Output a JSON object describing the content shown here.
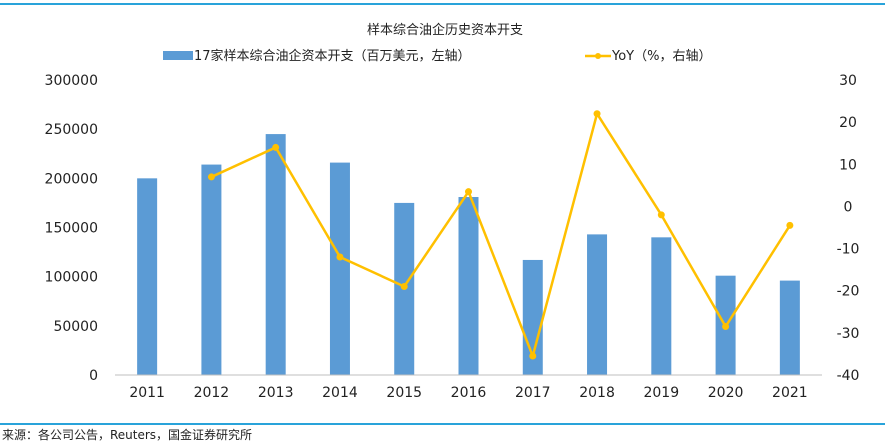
{
  "source_note": "来源：各公司公告，Reuters，国金证券研究所",
  "colors": {
    "bar": "#5b9bd5",
    "line": "#ffc000",
    "frame": "#29a3da",
    "gridline": "#d9d9d9",
    "text": "#222222"
  },
  "chart_data": {
    "type": "bar",
    "title": "样本综合油企历史资本开支",
    "categories": [
      "2011",
      "2012",
      "2013",
      "2014",
      "2015",
      "2016",
      "2017",
      "2018",
      "2019",
      "2020",
      "2021"
    ],
    "series": [
      {
        "name": "17家样本综合油企资本开支（百万美元，左轴）",
        "type": "bar",
        "axis": "left",
        "values": [
          200000,
          214000,
          245000,
          216000,
          175000,
          181000,
          117000,
          143000,
          140000,
          101000,
          96000
        ]
      },
      {
        "name": "YoY（%，右轴）",
        "type": "line",
        "axis": "right",
        "values": [
          null,
          7,
          14,
          -12,
          -19,
          3.5,
          -35.5,
          22,
          -2,
          -28.5,
          -4.5
        ]
      }
    ],
    "y_left": {
      "min": 0,
      "max": 300000,
      "ticks": [
        "0",
        "50000",
        "100000",
        "150000",
        "200000",
        "250000",
        "300000"
      ]
    },
    "y_right": {
      "min": -40,
      "max": 30,
      "ticks": [
        "-40",
        "-30",
        "-20",
        "-10",
        "0",
        "10",
        "20",
        "30"
      ]
    },
    "grid": false,
    "legend": "top"
  }
}
